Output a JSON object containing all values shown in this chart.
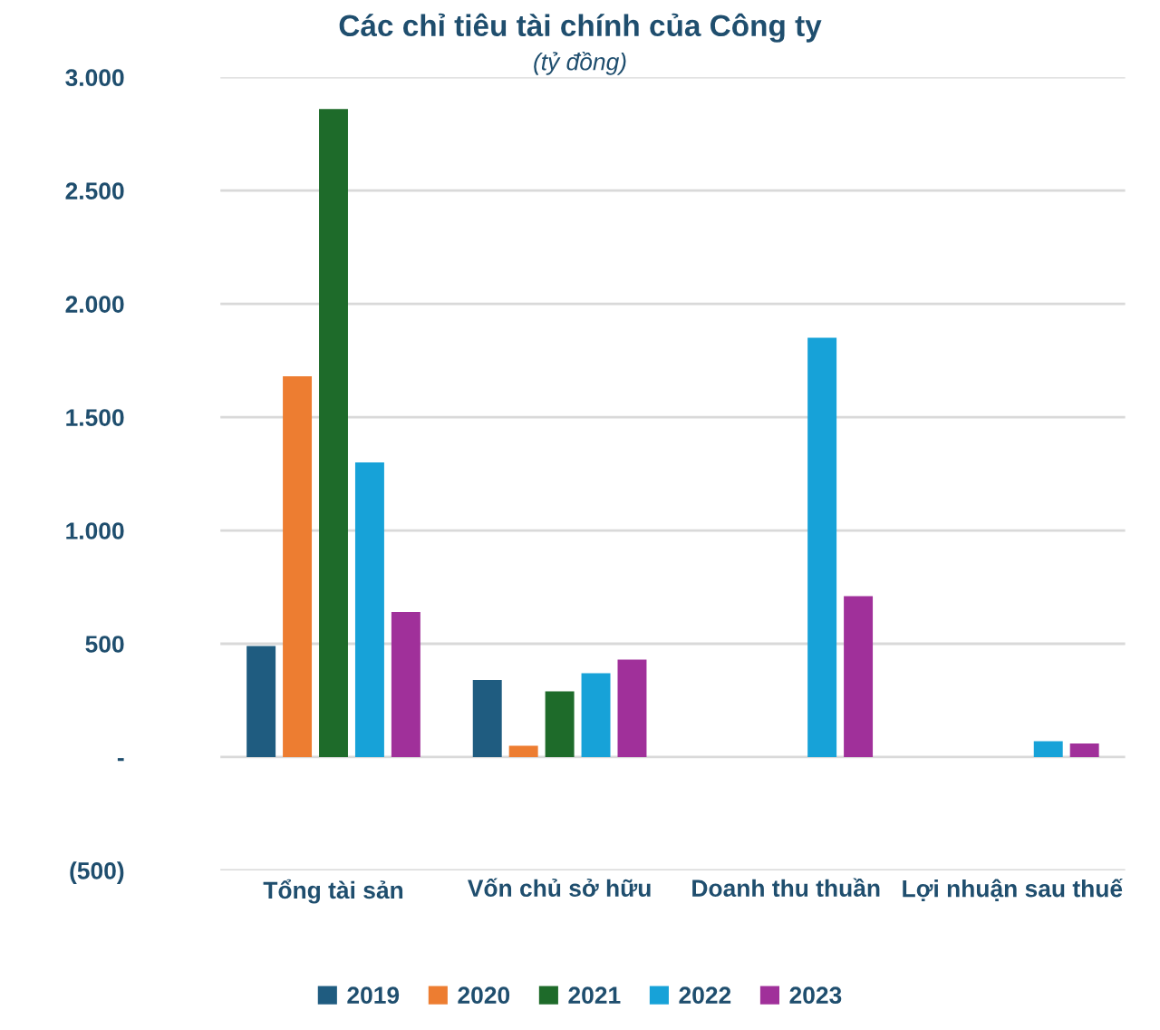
{
  "chart_data": {
    "type": "bar",
    "title": "Các chỉ tiêu tài chính của Công ty",
    "subtitle": "(tỷ đồng)",
    "categories": [
      "Tổng tài sản",
      "Vốn chủ sở hữu",
      "Doanh thu thuần",
      "Lợi nhuận sau thuế"
    ],
    "series": [
      {
        "name": "2019",
        "color": "#1f5c80",
        "values": [
          490,
          340,
          null,
          null
        ]
      },
      {
        "name": "2020",
        "color": "#ed7d31",
        "values": [
          1680,
          50,
          null,
          null
        ]
      },
      {
        "name": "2021",
        "color": "#1e6b2a",
        "values": [
          2860,
          290,
          null,
          null
        ]
      },
      {
        "name": "2022",
        "color": "#17a2d8",
        "values": [
          1300,
          370,
          1850,
          70
        ]
      },
      {
        "name": "2023",
        "color": "#a0309a",
        "values": [
          640,
          430,
          710,
          60
        ]
      }
    ],
    "ylim": [
      -500,
      3000
    ],
    "yticks": [
      {
        "value": -500,
        "label": "(500)"
      },
      {
        "value": 0,
        "label": "-"
      },
      {
        "value": 500,
        "label": "500"
      },
      {
        "value": 1000,
        "label": "1.000"
      },
      {
        "value": 1500,
        "label": "1.500"
      },
      {
        "value": 2000,
        "label": "2.000"
      },
      {
        "value": 2500,
        "label": "2.500"
      },
      {
        "value": 3000,
        "label": "3.000"
      }
    ],
    "grid": "y",
    "legend": "bottom"
  }
}
